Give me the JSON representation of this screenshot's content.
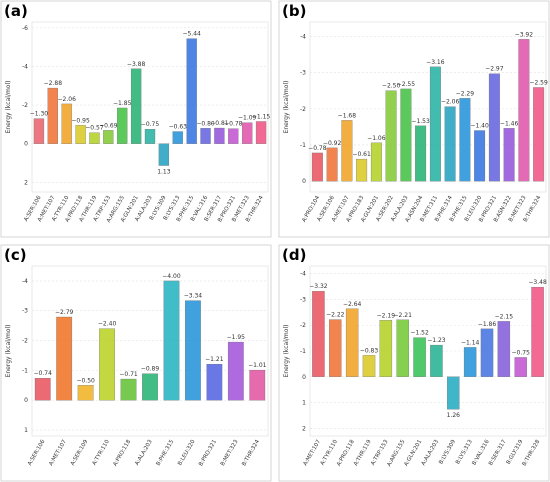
{
  "chart_data": [
    {
      "type": "bar",
      "label": "(a)",
      "y_label": "Energy (kcal/mol)",
      "categories": [
        "A:SER:106",
        "A:MET:107",
        "A:TYR:110",
        "A:PRO:118",
        "A:THR:119",
        "A:TRP:153",
        "A:ARG:155",
        "A:GLN:201",
        "A:ALA:203",
        "B:LYS:309",
        "B:LYS:313",
        "B:PHE:315",
        "B:VAL:316",
        "B:SER:317",
        "B:PRO:321",
        "B:MET:323",
        "B:THR:324"
      ],
      "values": [
        -1.3,
        -2.88,
        -2.06,
        -0.95,
        -0.57,
        -0.69,
        -1.85,
        -3.88,
        -0.75,
        1.13,
        -0.63,
        -5.44,
        -0.8,
        -0.81,
        -0.78,
        -1.09,
        -1.15
      ],
      "value_labels": [
        "−1.30",
        "−2.88",
        "−2.06",
        "−0.95",
        "−0.57",
        "−0.69",
        "−1.85",
        "−3.88",
        "−0.75",
        "1.13",
        "−0.63",
        "−5.44",
        "−0.80",
        "−0.81",
        "−0.78",
        "−1.09",
        "−1.15"
      ],
      "colors": [
        "#e8606b",
        "#f07030",
        "#f0a020",
        "#d8c820",
        "#b0d020",
        "#80c830",
        "#40c040",
        "#20b070",
        "#20b0a0",
        "#20a0c0",
        "#2090d8",
        "#3070e0",
        "#6060e0",
        "#9050d8",
        "#c050d0",
        "#e050a8",
        "#f05080"
      ],
      "ylim": [
        -6.3,
        2.5
      ],
      "y_inverted": true,
      "yticks": [
        -6,
        -4,
        -2,
        0,
        2
      ],
      "grid": true
    },
    {
      "type": "bar",
      "label": "(b)",
      "y_label": "Energy (kcal/mol)",
      "categories": [
        "A:PRO:104",
        "A:SER:106",
        "A:MET:107",
        "A:PRO:183",
        "A:GLN:201",
        "A:SER:202",
        "A:ALA:203",
        "A:ASN:204",
        "B:MET:311",
        "B:PHE:314",
        "B:PHE:315",
        "B:LEU:320",
        "B:PRO:321",
        "B:ASN:322",
        "B:MET:323",
        "B:THR:324"
      ],
      "values": [
        -0.78,
        -0.92,
        -1.68,
        -0.61,
        -1.06,
        -2.5,
        -2.55,
        -1.53,
        -3.16,
        -2.06,
        -2.29,
        -1.4,
        -2.97,
        -1.46,
        -3.92,
        -2.59
      ],
      "value_labels": [
        "−0.78",
        "−0.92",
        "−1.68",
        "−0.61",
        "−1.06",
        "−2.50",
        "−2.55",
        "−1.53",
        "−3.16",
        "−2.06",
        "−2.29",
        "−1.40",
        "−2.97",
        "−1.46",
        "−3.92",
        "−2.59"
      ],
      "colors": [
        "#e8505b",
        "#f07030",
        "#f0a020",
        "#d8c820",
        "#b0d020",
        "#80c830",
        "#40c040",
        "#20b070",
        "#20b0a0",
        "#20a0c0",
        "#2090d8",
        "#3070e0",
        "#6060e0",
        "#9050d8",
        "#e050a8",
        "#f05080"
      ],
      "ylim": [
        -4.4,
        0.3
      ],
      "y_inverted": true,
      "yticks": [
        -4,
        -3,
        -2,
        -1,
        0
      ],
      "grid": true
    },
    {
      "type": "bar",
      "label": "(c)",
      "y_label": "Energy (kcal/mol)",
      "categories": [
        "A:SER:106",
        "A:MET:107",
        "A:SER:109",
        "A:TYR:110",
        "A:PRO:118",
        "A:ALA:203",
        "B:PHE:315",
        "B:LEU:320",
        "B:PRO:321",
        "B:MET:323",
        "B:THR:324"
      ],
      "values": [
        -0.74,
        -2.79,
        -0.5,
        -2.4,
        -0.71,
        -0.89,
        -4.0,
        -3.34,
        -1.21,
        -1.95,
        -1.01
      ],
      "value_labels": [
        "−0.74",
        "−2.79",
        "−0.50",
        "−2.40",
        "−0.71",
        "−0.89",
        "−4.00",
        "−3.34",
        "−1.21",
        "−1.95",
        "−1.01"
      ],
      "colors": [
        "#e8505b",
        "#f07020",
        "#f0b020",
        "#b8d020",
        "#60c030",
        "#20b070",
        "#20b0c0",
        "#2090d8",
        "#5060e0",
        "#a050d8",
        "#e050a0"
      ],
      "ylim": [
        -4.5,
        1.2
      ],
      "y_inverted": true,
      "yticks": [
        -4,
        -3,
        -2,
        -1,
        0,
        1
      ],
      "grid": true
    },
    {
      "type": "bar",
      "label": "(d)",
      "y_label": "Energy (kcal/mol)",
      "categories": [
        "A:MET:107",
        "A:TYR:110",
        "A:PRO:118",
        "A:THR:119",
        "A:TRP:153",
        "A:ARG:155",
        "A:GLN:201",
        "A:ALA:203",
        "B:LYS:309",
        "B:LYS:313",
        "B:VAL:316",
        "B:SER:317",
        "B:GLY:319",
        "B:THR:328"
      ],
      "values": [
        -3.32,
        -2.22,
        -2.64,
        -0.83,
        -2.19,
        -2.21,
        -1.52,
        -1.23,
        1.26,
        -1.14,
        -1.86,
        -2.15,
        -0.75,
        -3.48
      ],
      "value_labels": [
        "−3.32",
        "−2.22",
        "−2.64",
        "−0.83",
        "−2.19",
        "−2.21",
        "−1.52",
        "−1.23",
        "1.26",
        "−1.14",
        "−1.86",
        "−2.15",
        "−0.75",
        "−3.48"
      ],
      "colors": [
        "#e8505b",
        "#f07030",
        "#f0a020",
        "#d8c820",
        "#b0d020",
        "#70c830",
        "#30c050",
        "#20b090",
        "#20a8c0",
        "#2090d8",
        "#4070e0",
        "#8058d8",
        "#c050d0",
        "#f05080"
      ],
      "ylim": [
        -4.3,
        2.3
      ],
      "y_inverted": true,
      "yticks": [
        -4,
        -3,
        -2,
        -1,
        0,
        1,
        2
      ],
      "grid": true
    }
  ]
}
